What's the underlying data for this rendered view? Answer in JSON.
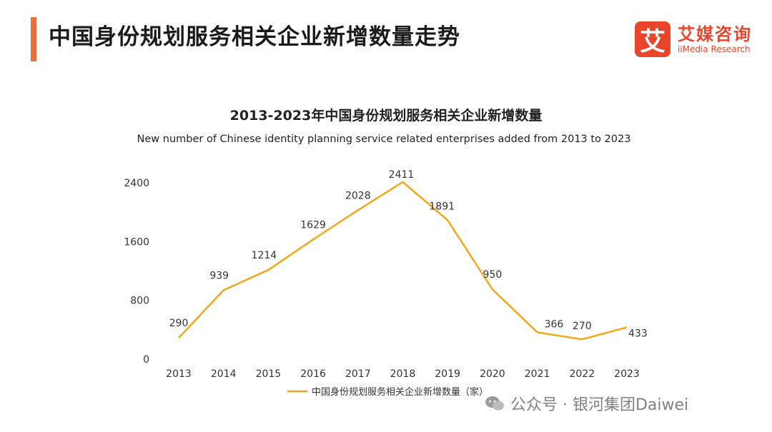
{
  "header": {
    "title": "中国身份规划服务相关企业新增数量走势",
    "logo_cn": "艾媒咨询",
    "logo_en": "iiMedia Research",
    "logo_mark": "艾"
  },
  "watermark": {
    "text": "公众号 · 银河集团Daiwei",
    "icon": "wechat-icon"
  },
  "colors": {
    "accent": "#ef6b3a",
    "line": "#f0a81a",
    "brand": "#e8452c"
  },
  "chart_data": {
    "type": "line",
    "title": "2013-2023年中国身份规划服务相关企业新增数量",
    "subtitle": "New number of Chinese identity planning service related enterprises added from 2013 to 2023",
    "xlabel": "",
    "ylabel": "",
    "categories": [
      "2013",
      "2014",
      "2015",
      "2016",
      "2017",
      "2018",
      "2019",
      "2020",
      "2021",
      "2022",
      "2023"
    ],
    "series": [
      {
        "name": "中国身份规划服务相关企业新增数量（家）",
        "values": [
          290,
          939,
          1214,
          1629,
          2028,
          2411,
          1891,
          950,
          366,
          270,
          433
        ]
      }
    ],
    "ylim": [
      0,
      2400
    ],
    "yticks": [
      0,
      800,
      1600,
      2400
    ],
    "grid": false,
    "legend_position": "bottom"
  }
}
